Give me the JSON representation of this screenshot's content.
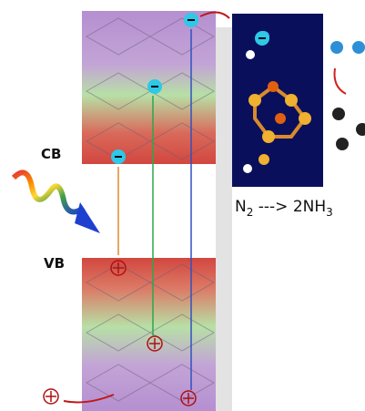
{
  "labels": {
    "cb": "CB",
    "vb": "VB"
  },
  "reaction": {
    "reactant": "N",
    "reactant_subscript": "2",
    "arrow": " ---> 2NH",
    "product_subscript": "3"
  }
}
